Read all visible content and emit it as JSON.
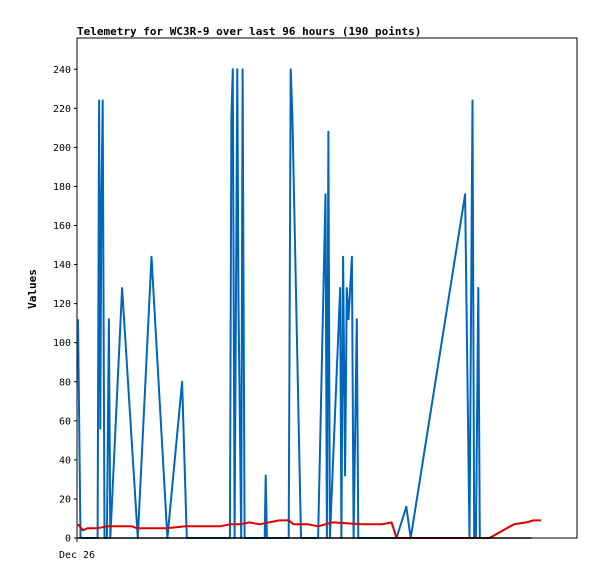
{
  "chart_data": {
    "type": "line",
    "title": "Telemetry for WC3R-9 over last 96 hours (190 points)",
    "xlabel": "",
    "ylabel": "Values",
    "x_tick_labels": [
      "Dec 26"
    ],
    "ylim": [
      0,
      256
    ],
    "y_ticks": [
      0,
      20,
      40,
      60,
      80,
      100,
      120,
      140,
      160,
      180,
      200,
      220,
      240
    ],
    "grid": false,
    "legend": "none",
    "x_units": "hours",
    "series": [
      {
        "color": "#0066bb",
        "points": [
          [
            0.0,
            112
          ],
          [
            1.0,
            0
          ],
          [
            8.0,
            0
          ],
          [
            8.6,
            224
          ],
          [
            9.1,
            56
          ],
          [
            9.5,
            168
          ],
          [
            10.1,
            224
          ],
          [
            10.8,
            0
          ],
          [
            11.8,
            0
          ],
          [
            12.6,
            112
          ],
          [
            13.2,
            0
          ],
          [
            18.0,
            128
          ],
          [
            24.4,
            0
          ],
          [
            30.0,
            144
          ],
          [
            36.5,
            0
          ],
          [
            42.5,
            80
          ],
          [
            44.4,
            0
          ],
          [
            62.0,
            0
          ],
          [
            62.6,
            216
          ],
          [
            63.2,
            240
          ],
          [
            63.9,
            0
          ],
          [
            65.0,
            240
          ],
          [
            65.5,
            120
          ],
          [
            66.6,
            0
          ],
          [
            67.2,
            240
          ],
          [
            68.0,
            0
          ],
          [
            76.2,
            0
          ],
          [
            76.6,
            32
          ],
          [
            77.1,
            0
          ],
          [
            86.0,
            0
          ],
          [
            86.8,
            240
          ],
          [
            87.5,
            216
          ],
          [
            91.0,
            0
          ],
          [
            98.0,
            0
          ],
          [
            101.0,
            176
          ],
          [
            101.6,
            0
          ],
          [
            102.2,
            208
          ],
          [
            102.8,
            0
          ],
          [
            107.0,
            128
          ],
          [
            107.5,
            0
          ],
          [
            108.2,
            144
          ],
          [
            109.0,
            32
          ],
          [
            109.7,
            128
          ],
          [
            110.4,
            112
          ],
          [
            111.8,
            144
          ],
          [
            112.5,
            0
          ],
          [
            113.8,
            112
          ],
          [
            114.4,
            0
          ],
          [
            130.0,
            0
          ],
          [
            134.0,
            16
          ],
          [
            135.8,
            0
          ],
          [
            158.0,
            176
          ],
          [
            159.8,
            0
          ],
          [
            160.4,
            112
          ],
          [
            161.0,
            224
          ],
          [
            161.7,
            0
          ],
          [
            162.4,
            0
          ],
          [
            163.4,
            128
          ],
          [
            164.0,
            0
          ]
        ]
      },
      {
        "color": "#dd0000",
        "points": [
          [
            0.0,
            7
          ],
          [
            2.0,
            4
          ],
          [
            4.0,
            5
          ],
          [
            8.0,
            5
          ],
          [
            12.0,
            6
          ],
          [
            18.0,
            6
          ],
          [
            22.0,
            6
          ],
          [
            24.0,
            5
          ],
          [
            28.0,
            5
          ],
          [
            36.0,
            5
          ],
          [
            44.0,
            6
          ],
          [
            52.0,
            6
          ],
          [
            58.0,
            6
          ],
          [
            62.0,
            7
          ],
          [
            66.0,
            7
          ],
          [
            70.0,
            8
          ],
          [
            74.0,
            7
          ],
          [
            78.0,
            8
          ],
          [
            82.0,
            9
          ],
          [
            86.0,
            9
          ],
          [
            88.0,
            7
          ],
          [
            94.0,
            7
          ],
          [
            98.0,
            6
          ],
          [
            104.0,
            8
          ],
          [
            116.0,
            7
          ],
          [
            124.0,
            7
          ],
          [
            128.0,
            8
          ],
          [
            130.0,
            0
          ],
          [
            140.0,
            0
          ],
          [
            158.0,
            0
          ],
          [
            168.0,
            0
          ],
          [
            175.0,
            5
          ],
          [
            178.0,
            7
          ],
          [
            183.0,
            8
          ],
          [
            186.0,
            9
          ],
          [
            189.0,
            9
          ]
        ]
      },
      {
        "color": "#000000",
        "points": [
          [
            0.0,
            0
          ],
          [
            185.0,
            0
          ]
        ]
      }
    ]
  }
}
